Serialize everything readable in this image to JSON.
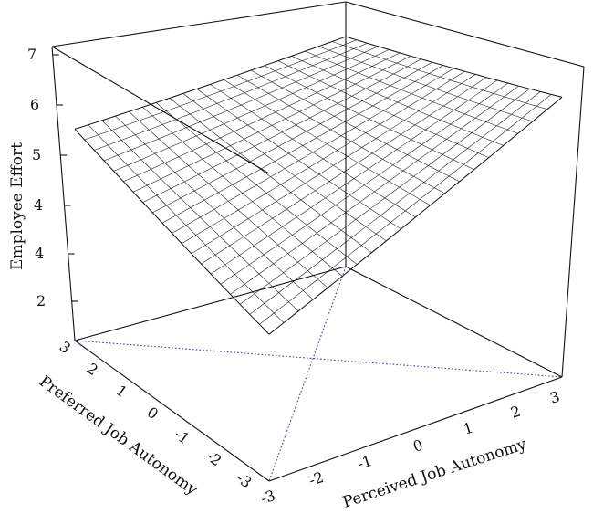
{
  "chart_data": {
    "type": "surface",
    "title": "",
    "xlabel": "Perceived Job Autonomy",
    "ylabel": "Preferred Job Autonomy",
    "zlabel": "Employee Effort",
    "x_ticks": [
      "-3",
      "-2",
      "-1",
      "0",
      "1",
      "2",
      "3"
    ],
    "y_ticks": [
      "3",
      "2",
      "1",
      "0",
      "-1",
      "-2",
      "-3"
    ],
    "z_ticks": [
      "2",
      "4",
      "4",
      "5",
      "6",
      "7"
    ],
    "xlim": [
      -3,
      3
    ],
    "ylim": [
      -3,
      3
    ],
    "zlim": [
      1,
      7
    ],
    "surface_corners": {
      "x=-3,y=3": 5.2,
      "x=3,y=3": 5.7,
      "x=3,y=-3": 6.6,
      "x=-3,y=-3": 4.0
    },
    "floor_lines": "line of congruence (x = y) and line of incongruence (x = -y), dotted",
    "diag_color": "#3a3ad0",
    "mesh_color": "#111111",
    "grid_lines": 21
  }
}
